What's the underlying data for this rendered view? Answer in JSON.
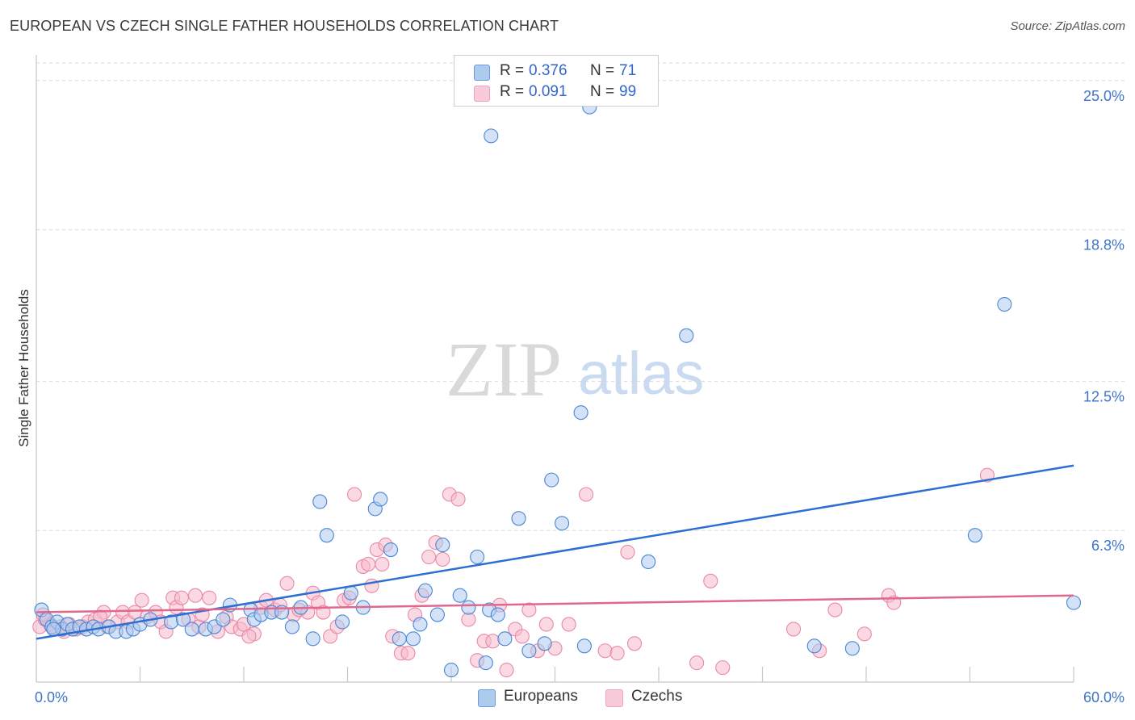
{
  "title": "EUROPEAN VS CZECH SINGLE FATHER HOUSEHOLDS CORRELATION CHART",
  "source": "Source: ZipAtlas.com",
  "watermark": {
    "zip": "ZIP",
    "atlas": "atlas"
  },
  "legend": {
    "rows": [
      {
        "r_label": "R =",
        "r_value": "0.376",
        "n_label": "N =",
        "n_value": "71",
        "color": "#aecbee"
      },
      {
        "r_label": "R =",
        "r_value": "0.091",
        "n_label": "N =",
        "n_value": "99",
        "color": "#f7b9cc"
      }
    ]
  },
  "bottom_legend": [
    {
      "label": "Europeans",
      "color": "#aecbee"
    },
    {
      "label": "Czechs",
      "color": "#f7b9cc"
    }
  ],
  "chart_data": {
    "type": "scatter",
    "title": "EUROPEAN VS CZECH SINGLE FATHER HOUSEHOLDS CORRELATION CHART",
    "xlabel": "",
    "ylabel": "Single Father Households",
    "xlim": [
      0,
      60
    ],
    "ylim": [
      0,
      26
    ],
    "x_tick_labels": [
      "0.0%",
      "60.0%"
    ],
    "y_ticks": [
      6.3,
      12.5,
      18.8,
      25.0
    ],
    "y_tick_labels": [
      "6.3%",
      "12.5%",
      "18.8%",
      "25.0%"
    ],
    "grid": "horizontal dashed",
    "legend_position": "top-center",
    "series": [
      {
        "name": "Europeans",
        "color": "#4a86d4",
        "fill": "#aecbee",
        "trend": {
          "x": [
            0,
            60
          ],
          "y": [
            1.8,
            9.0
          ],
          "color": "#2d6fd0"
        },
        "points": [
          [
            0.3,
            3.0
          ],
          [
            0.6,
            2.6
          ],
          [
            0.9,
            2.3
          ],
          [
            1.2,
            2.5
          ],
          [
            1.5,
            2.2
          ],
          [
            1.8,
            2.4
          ],
          [
            2.1,
            2.2
          ],
          [
            2.5,
            2.3
          ],
          [
            2.9,
            2.2
          ],
          [
            3.3,
            2.3
          ],
          [
            3.6,
            2.2
          ],
          [
            4.2,
            2.3
          ],
          [
            4.6,
            2.1
          ],
          [
            5.2,
            2.1
          ],
          [
            5.6,
            2.2
          ],
          [
            6.0,
            2.4
          ],
          [
            6.6,
            2.6
          ],
          [
            7.8,
            2.5
          ],
          [
            8.5,
            2.6
          ],
          [
            9.0,
            2.2
          ],
          [
            9.8,
            2.2
          ],
          [
            10.3,
            2.3
          ],
          [
            10.8,
            2.6
          ],
          [
            11.2,
            3.2
          ],
          [
            12.4,
            3.0
          ],
          [
            12.6,
            2.6
          ],
          [
            13.0,
            2.8
          ],
          [
            13.6,
            2.9
          ],
          [
            14.2,
            2.9
          ],
          [
            14.8,
            2.3
          ],
          [
            15.3,
            3.1
          ],
          [
            16.0,
            1.8
          ],
          [
            16.4,
            7.5
          ],
          [
            16.8,
            6.1
          ],
          [
            17.7,
            2.5
          ],
          [
            18.2,
            3.7
          ],
          [
            18.9,
            3.1
          ],
          [
            19.6,
            7.2
          ],
          [
            19.9,
            7.6
          ],
          [
            20.5,
            5.5
          ],
          [
            21.0,
            1.8
          ],
          [
            21.8,
            1.8
          ],
          [
            22.2,
            2.4
          ],
          [
            22.5,
            3.8
          ],
          [
            23.2,
            2.8
          ],
          [
            23.5,
            5.7
          ],
          [
            24.0,
            0.5
          ],
          [
            24.5,
            3.6
          ],
          [
            25.0,
            3.1
          ],
          [
            25.5,
            5.2
          ],
          [
            26.0,
            0.8
          ],
          [
            26.2,
            3.0
          ],
          [
            26.7,
            2.8
          ],
          [
            26.3,
            22.7
          ],
          [
            27.1,
            1.8
          ],
          [
            27.9,
            6.8
          ],
          [
            28.5,
            1.3
          ],
          [
            29.4,
            1.6
          ],
          [
            29.8,
            8.4
          ],
          [
            30.4,
            6.6
          ],
          [
            31.5,
            11.2
          ],
          [
            31.7,
            1.5
          ],
          [
            35.4,
            5.0
          ],
          [
            37.6,
            14.4
          ],
          [
            45.0,
            1.5
          ],
          [
            47.2,
            1.4
          ],
          [
            54.3,
            6.1
          ],
          [
            56.0,
            15.7
          ],
          [
            60.0,
            3.3
          ],
          [
            32.0,
            23.9
          ],
          [
            1.0,
            2.2
          ]
        ]
      },
      {
        "name": "Czechs",
        "color": "#e889a7",
        "fill": "#f7b9cc",
        "trend": {
          "x": [
            0,
            60
          ],
          "y": [
            2.9,
            3.6
          ],
          "color": "#e0688f"
        },
        "points": [
          [
            0.2,
            2.3
          ],
          [
            0.5,
            2.6
          ],
          [
            0.8,
            2.4
          ],
          [
            1.1,
            2.2
          ],
          [
            1.4,
            2.3
          ],
          [
            1.9,
            2.4
          ],
          [
            2.3,
            2.2
          ],
          [
            2.7,
            2.3
          ],
          [
            3.0,
            2.5
          ],
          [
            3.4,
            2.6
          ],
          [
            3.9,
            2.9
          ],
          [
            4.1,
            2.3
          ],
          [
            4.7,
            2.5
          ],
          [
            5.0,
            2.9
          ],
          [
            5.3,
            2.5
          ],
          [
            5.7,
            2.9
          ],
          [
            6.1,
            3.4
          ],
          [
            6.4,
            2.7
          ],
          [
            6.9,
            2.9
          ],
          [
            7.2,
            2.5
          ],
          [
            7.5,
            2.1
          ],
          [
            7.9,
            3.5
          ],
          [
            8.1,
            3.1
          ],
          [
            8.4,
            3.5
          ],
          [
            8.8,
            2.6
          ],
          [
            9.2,
            3.6
          ],
          [
            9.4,
            2.3
          ],
          [
            9.6,
            2.8
          ],
          [
            10.0,
            3.5
          ],
          [
            10.5,
            2.1
          ],
          [
            11.0,
            2.7
          ],
          [
            11.3,
            2.3
          ],
          [
            11.8,
            2.2
          ],
          [
            12.0,
            2.4
          ],
          [
            12.6,
            2.0
          ],
          [
            13.0,
            3.1
          ],
          [
            13.3,
            3.4
          ],
          [
            13.8,
            3.0
          ],
          [
            14.1,
            3.2
          ],
          [
            14.5,
            4.1
          ],
          [
            14.9,
            2.8
          ],
          [
            15.2,
            3.0
          ],
          [
            15.7,
            2.9
          ],
          [
            16.0,
            3.7
          ],
          [
            16.3,
            3.3
          ],
          [
            16.6,
            2.9
          ],
          [
            17.0,
            1.9
          ],
          [
            17.4,
            2.3
          ],
          [
            17.8,
            3.4
          ],
          [
            18.1,
            3.5
          ],
          [
            18.4,
            7.8
          ],
          [
            18.9,
            4.8
          ],
          [
            19.2,
            4.9
          ],
          [
            19.4,
            4.0
          ],
          [
            19.7,
            5.5
          ],
          [
            20.0,
            4.9
          ],
          [
            20.2,
            5.7
          ],
          [
            20.6,
            1.9
          ],
          [
            21.1,
            1.2
          ],
          [
            21.5,
            1.2
          ],
          [
            21.9,
            2.8
          ],
          [
            22.3,
            3.6
          ],
          [
            22.7,
            5.2
          ],
          [
            23.1,
            5.8
          ],
          [
            23.5,
            5.1
          ],
          [
            23.9,
            7.8
          ],
          [
            24.4,
            7.6
          ],
          [
            25.0,
            2.6
          ],
          [
            25.5,
            0.9
          ],
          [
            25.9,
            1.7
          ],
          [
            26.4,
            1.7
          ],
          [
            26.8,
            3.2
          ],
          [
            27.2,
            0.5
          ],
          [
            27.7,
            2.2
          ],
          [
            28.1,
            1.9
          ],
          [
            28.5,
            3.0
          ],
          [
            29.0,
            1.3
          ],
          [
            29.5,
            2.4
          ],
          [
            30.0,
            1.4
          ],
          [
            30.8,
            2.4
          ],
          [
            31.8,
            7.8
          ],
          [
            32.9,
            1.3
          ],
          [
            33.6,
            1.2
          ],
          [
            34.2,
            5.4
          ],
          [
            34.6,
            1.6
          ],
          [
            38.2,
            0.8
          ],
          [
            39.0,
            4.2
          ],
          [
            39.7,
            0.6
          ],
          [
            43.8,
            2.2
          ],
          [
            45.3,
            1.3
          ],
          [
            46.2,
            3.0
          ],
          [
            47.9,
            2.0
          ],
          [
            49.3,
            3.6
          ],
          [
            49.6,
            3.3
          ],
          [
            55.0,
            8.6
          ],
          [
            0.4,
            2.8
          ],
          [
            1.6,
            2.1
          ],
          [
            3.7,
            2.7
          ],
          [
            12.3,
            1.9
          ]
        ]
      }
    ]
  }
}
